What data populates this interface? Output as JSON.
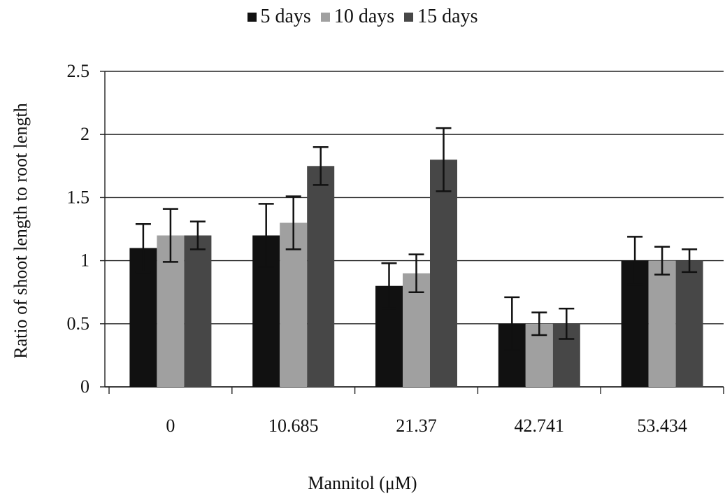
{
  "chart_data": {
    "type": "bar",
    "title": "",
    "xlabel": "Mannitol (μM)",
    "ylabel": "Ratio of shoot length to root length",
    "ylim": [
      0,
      2.5
    ],
    "yticks": [
      "0",
      "0.5",
      "1",
      "1.5",
      "2",
      "2.5"
    ],
    "ytick_values": [
      0,
      0.5,
      1,
      1.5,
      2,
      2.5
    ],
    "categories": [
      "0",
      "10.685",
      "21.37",
      "42.741",
      "53.434"
    ],
    "grid": true,
    "legend_position": "top",
    "series": [
      {
        "name": "5 days",
        "color": "#111111",
        "values": [
          1.1,
          1.2,
          0.8,
          0.5,
          1.0
        ],
        "errors": [
          0.19,
          0.25,
          0.18,
          0.21,
          0.19
        ]
      },
      {
        "name": "10 days",
        "color": "#a0a0a0",
        "values": [
          1.2,
          1.3,
          0.9,
          0.5,
          1.0
        ],
        "errors": [
          0.21,
          0.21,
          0.15,
          0.09,
          0.11
        ]
      },
      {
        "name": "15 days",
        "color": "#474747",
        "values": [
          1.2,
          1.75,
          1.8,
          0.5,
          1.0
        ],
        "errors": [
          0.11,
          0.15,
          0.25,
          0.12,
          0.09
        ]
      }
    ]
  }
}
